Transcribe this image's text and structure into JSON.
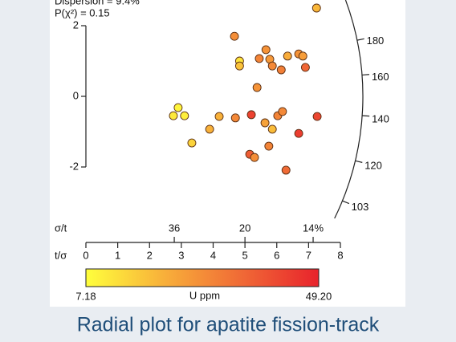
{
  "chart_data": {
    "type": "radial",
    "caption": "Radial plot for apatite fission-track",
    "dispersion_text": "Dispersion = 9.4%",
    "p_text": "P(χ²) = 0.15",
    "xlabel": "t/σ",
    "x2label": "σ/t",
    "xlim": [
      0,
      8
    ],
    "xticks": [
      0,
      1,
      2,
      3,
      4,
      5,
      6,
      7,
      8
    ],
    "x2ticks": [
      36,
      20,
      {
        "value": 14,
        "label": "14%"
      }
    ],
    "ylim": [
      -2,
      2
    ],
    "yticks": [
      -2,
      0,
      2
    ],
    "radial_ticks": [
      180,
      160,
      140,
      120,
      103
    ],
    "x": [
      7.25,
      4.67,
      4.83,
      4.83,
      5.66,
      5.45,
      5.78,
      5.86,
      6.14,
      6.34,
      6.69,
      6.82,
      6.9,
      5.38,
      2.9,
      2.75,
      3.1,
      4.19,
      4.7,
      5.2,
      3.89,
      3.33,
      5.63,
      5.86,
      6.03,
      6.18,
      6.69,
      7.27,
      5.75,
      5.15,
      5.3,
      6.29
    ],
    "values": [
      2.5,
      1.7,
      1.0,
      0.86,
      1.32,
      1.07,
      1.05,
      0.86,
      0.75,
      1.14,
      1.2,
      1.14,
      0.82,
      0.25,
      -0.32,
      -0.55,
      -0.55,
      -0.57,
      -0.61,
      -0.52,
      -0.93,
      -1.32,
      -0.75,
      -0.93,
      -0.55,
      -0.43,
      -1.05,
      -0.57,
      -1.41,
      -1.64,
      -1.73,
      -2.09
    ],
    "u": [
      20,
      28,
      12,
      18,
      27,
      30,
      26,
      29,
      31,
      22,
      27,
      25,
      36,
      27,
      9,
      11,
      10,
      21,
      29,
      43,
      21,
      15,
      24,
      19,
      30,
      29,
      44,
      42,
      30,
      38,
      28,
      35
    ],
    "colorbar": {
      "label": "U ppm",
      "clim": [
        7.18,
        49.2
      ],
      "ticks": [
        7.18,
        {
          "value": 49.2,
          "label": "49.20"
        }
      ],
      "colors": [
        "#ffff3c",
        "#f8b03a",
        "#f06a36",
        "#e8232c"
      ]
    }
  }
}
